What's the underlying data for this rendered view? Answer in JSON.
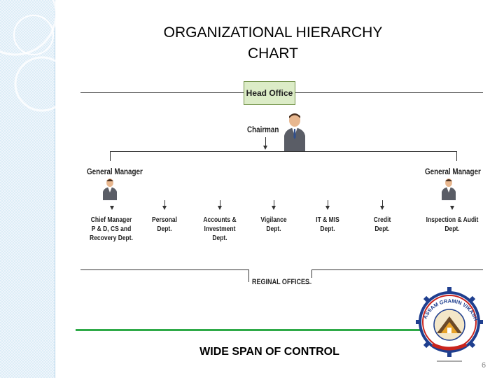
{
  "slide": {
    "title_line1": "ORGANIZATIONAL HIERARCHY",
    "title_line2": "CHART",
    "caption": "WIDE SPAN OF CONTROL",
    "page_number": "6"
  },
  "chart": {
    "head_office": "Head Office",
    "chairman": "Chairman",
    "gm_left": "General Manager",
    "gm_right": "General Manager",
    "regional_offices": "REGINAL OFFICES",
    "departments": [
      {
        "line1": "Chief Manager",
        "line2": "P & D, CS and",
        "line3": "Recovery Dept."
      },
      {
        "line1": "Personal",
        "line2": "Dept.",
        "line3": ""
      },
      {
        "line1": "Accounts & Investment",
        "line2": "Dept.",
        "line3": ""
      },
      {
        "line1": "Vigilance",
        "line2": "Dept.",
        "line3": ""
      },
      {
        "line1": "IT & MIS",
        "line2": "Dept.",
        "line3": ""
      },
      {
        "line1": "Credit",
        "line2": "Dept.",
        "line3": ""
      },
      {
        "line1": "Inspection & Audit",
        "line2": "Dept.",
        "line3": ""
      }
    ]
  },
  "logo": {
    "arc_text": "ASSAM GRAMIN VIKASH BANK",
    "colors": {
      "ring": "#c9241d",
      "gear": "#1f3f8f",
      "accent": "#e8a32a"
    }
  },
  "colors": {
    "sidebar": "#dcecf7",
    "box_fill": "#dcecc7",
    "rule": "#2eaa48"
  },
  "icons": [
    "person-icon",
    "decorative-circles-icon",
    "bank-logo-icon"
  ]
}
